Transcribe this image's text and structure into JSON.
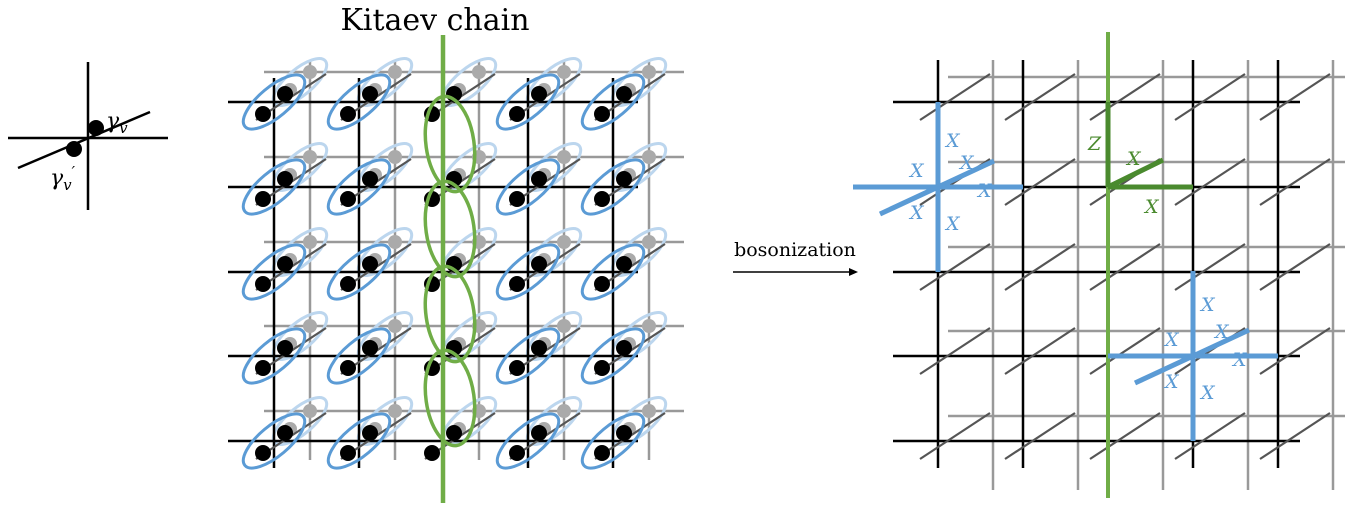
{
  "title": "Kitaev chain",
  "arrow_label": "bosonization",
  "inset": {
    "majorana_top": "γ",
    "majorana_top_sub": "v",
    "majorana_bottom": "γ",
    "majorana_bottom_sub": "v",
    "majorana_bottom_prime": "′"
  },
  "operators": {
    "x": "X",
    "z": "Z"
  },
  "colors": {
    "grid_front": "#000000",
    "grid_back": "#999999",
    "diagonal": "#555555",
    "blue": "#5b9bd5",
    "blue_light": "#bcd6ee",
    "green": "#70ad47",
    "green_dark": "#4a8a2e",
    "dot_front": "#000000",
    "dot_back": "#aaaaaa"
  }
}
